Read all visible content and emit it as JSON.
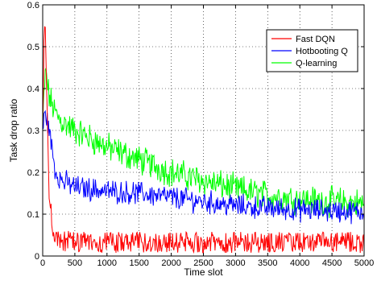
{
  "chart_data": {
    "type": "line",
    "title": "",
    "xlabel": "Time slot",
    "ylabel": "Task drop ratio",
    "xlim": [
      0,
      5000
    ],
    "ylim": [
      0,
      0.6
    ],
    "xticks": [
      0,
      500,
      1000,
      1500,
      2000,
      2500,
      3000,
      3500,
      4000,
      4500,
      5000
    ],
    "xtick_labels": [
      "0",
      "500",
      "1000",
      "1500",
      "2000",
      "2500",
      "3000",
      "3500",
      "4000",
      "4500",
      "5000"
    ],
    "yticks": [
      0,
      0.1,
      0.2,
      0.3,
      0.4,
      0.5,
      0.6
    ],
    "ytick_labels": [
      "0",
      "0.1",
      "0.2",
      "0.3",
      "0.4",
      "0.5",
      "0.6"
    ],
    "grid": true,
    "legend_position": "top-right",
    "series": [
      {
        "name": "Fast DQN",
        "color": "#ff0000",
        "x": [
          0,
          25,
          50,
          75,
          100,
          150,
          200,
          300,
          500,
          1000,
          2000,
          3000,
          4000,
          5000
        ],
        "y": [
          0.3,
          0.58,
          0.5,
          0.3,
          0.15,
          0.06,
          0.04,
          0.035,
          0.03,
          0.03,
          0.03,
          0.03,
          0.03,
          0.03
        ]
      },
      {
        "name": "Hotbooting Q",
        "color": "#0000ff",
        "x": [
          0,
          25,
          50,
          100,
          150,
          200,
          300,
          500,
          1000,
          1500,
          2000,
          2500,
          3000,
          3500,
          4000,
          4500,
          5000
        ],
        "y": [
          0.3,
          0.33,
          0.34,
          0.3,
          0.25,
          0.2,
          0.18,
          0.165,
          0.155,
          0.15,
          0.14,
          0.13,
          0.12,
          0.115,
          0.11,
          0.108,
          0.105
        ]
      },
      {
        "name": "Q-learning",
        "color": "#00ff00",
        "x": [
          0,
          25,
          50,
          100,
          200,
          300,
          500,
          1000,
          1500,
          2000,
          2500,
          3000,
          3500,
          4000,
          4500,
          5000
        ],
        "y": [
          0.3,
          0.4,
          0.44,
          0.38,
          0.34,
          0.32,
          0.3,
          0.26,
          0.23,
          0.2,
          0.18,
          0.16,
          0.145,
          0.135,
          0.13,
          0.125
        ]
      }
    ],
    "noise_amplitude": [
      0.022,
      0.022,
      0.028
    ]
  }
}
